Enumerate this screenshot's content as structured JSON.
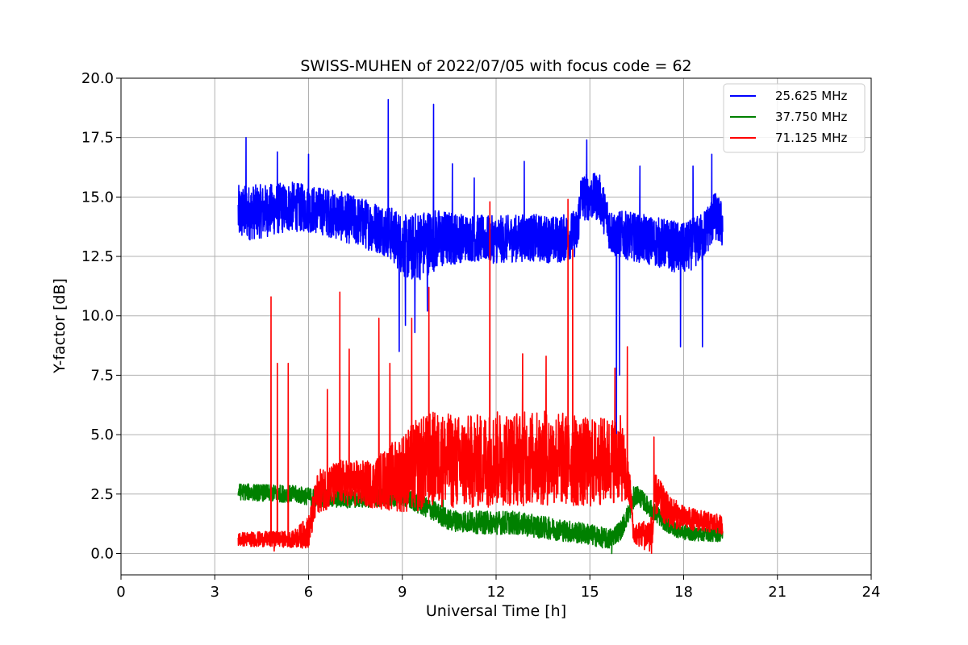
{
  "chart_data": {
    "type": "line",
    "title": "SWISS-MUHEN of 2022/07/05 with focus code = 62",
    "xlabel": "Universal Time [h]",
    "ylabel": "Y-factor [dB]",
    "xlim": [
      0,
      24
    ],
    "ylim": [
      -0.9,
      20.0
    ],
    "x_ticks": [
      0,
      3,
      6,
      9,
      12,
      15,
      18,
      21,
      24
    ],
    "x_tick_labels": [
      "0",
      "3",
      "6",
      "9",
      "12",
      "15",
      "18",
      "21",
      "24"
    ],
    "y_ticks": [
      0.0,
      2.5,
      5.0,
      7.5,
      10.0,
      12.5,
      15.0,
      17.5,
      20.0
    ],
    "y_tick_labels": [
      "0.0",
      "2.5",
      "5.0",
      "7.5",
      "10.0",
      "12.5",
      "15.0",
      "17.5",
      "20.0"
    ],
    "grid": true,
    "legend_position": "top-right",
    "series": [
      {
        "name": "25.625 MHz",
        "color": "#0000ff",
        "x_range": [
          3.75,
          19.25
        ],
        "baseline": [
          [
            3.75,
            14.3
          ],
          [
            4.5,
            14.4
          ],
          [
            5.5,
            14.6
          ],
          [
            6.5,
            14.4
          ],
          [
            7.5,
            14.0
          ],
          [
            8.5,
            13.6
          ],
          [
            9.2,
            12.8
          ],
          [
            10.0,
            13.2
          ],
          [
            11.0,
            13.3
          ],
          [
            12.0,
            13.2
          ],
          [
            13.0,
            13.3
          ],
          [
            14.0,
            13.2
          ],
          [
            14.6,
            13.5
          ],
          [
            14.7,
            15.0
          ],
          [
            15.3,
            15.0
          ],
          [
            15.7,
            13.5
          ],
          [
            16.5,
            13.3
          ],
          [
            17.5,
            13.0
          ],
          [
            18.0,
            12.8
          ],
          [
            18.6,
            13.3
          ],
          [
            19.0,
            14.2
          ],
          [
            19.25,
            13.8
          ]
        ],
        "noise": [
          [
            3.75,
            1.2
          ],
          [
            6.0,
            1.0
          ],
          [
            8.5,
            1.1
          ],
          [
            9.5,
            1.5
          ],
          [
            11.0,
            1.0
          ],
          [
            14.0,
            1.0
          ],
          [
            15.0,
            1.0
          ],
          [
            16.0,
            1.0
          ],
          [
            18.0,
            1.1
          ],
          [
            19.25,
            1.0
          ]
        ],
        "spikes": [
          [
            4.0,
            17.5
          ],
          [
            5.0,
            16.9
          ],
          [
            6.0,
            16.8
          ],
          [
            8.55,
            19.1
          ],
          [
            10.0,
            18.9
          ],
          [
            10.6,
            16.4
          ],
          [
            11.3,
            15.8
          ],
          [
            12.9,
            16.5
          ],
          [
            14.9,
            17.4
          ],
          [
            16.6,
            16.3
          ],
          [
            18.3,
            16.3
          ],
          [
            18.9,
            16.8
          ],
          [
            8.9,
            8.5
          ],
          [
            9.1,
            9.6
          ],
          [
            9.4,
            9.3
          ],
          [
            15.85,
            4.9
          ],
          [
            15.95,
            7.5
          ],
          [
            17.9,
            8.7
          ],
          [
            18.6,
            8.7
          ],
          [
            9.8,
            10.2
          ]
        ]
      },
      {
        "name": "37.750 MHz",
        "color": "#008000",
        "x_range": [
          3.75,
          19.25
        ],
        "baseline": [
          [
            3.75,
            2.6
          ],
          [
            5.5,
            2.5
          ],
          [
            6.5,
            2.3
          ],
          [
            7.5,
            2.3
          ],
          [
            9.0,
            2.4
          ],
          [
            10.0,
            1.8
          ],
          [
            10.5,
            1.4
          ],
          [
            11.5,
            1.3
          ],
          [
            12.5,
            1.3
          ],
          [
            13.5,
            1.1
          ],
          [
            14.0,
            1.0
          ],
          [
            15.0,
            0.8
          ],
          [
            15.6,
            0.6
          ],
          [
            16.0,
            1.0
          ],
          [
            16.5,
            2.5
          ],
          [
            17.0,
            1.8
          ],
          [
            17.5,
            1.2
          ],
          [
            18.0,
            0.9
          ],
          [
            19.0,
            0.8
          ],
          [
            19.25,
            0.8
          ]
        ],
        "noise": [
          [
            3.75,
            0.35
          ],
          [
            9.0,
            0.4
          ],
          [
            12.0,
            0.5
          ],
          [
            15.0,
            0.45
          ],
          [
            16.5,
            0.4
          ],
          [
            19.25,
            0.3
          ]
        ],
        "spikes": [
          [
            10.3,
            2.9
          ],
          [
            16.4,
            2.8
          ],
          [
            6.3,
            2.9
          ],
          [
            15.7,
            0.0
          ]
        ]
      },
      {
        "name": "71.125 MHz",
        "color": "#ff0000",
        "x_range": [
          3.75,
          19.25
        ],
        "baseline": [
          [
            3.75,
            0.6
          ],
          [
            5.5,
            0.6
          ],
          [
            6.0,
            0.9
          ],
          [
            6.3,
            2.6
          ],
          [
            7.0,
            3.0
          ],
          [
            8.0,
            2.9
          ],
          [
            9.0,
            3.4
          ],
          [
            10.0,
            4.0
          ],
          [
            11.0,
            3.8
          ],
          [
            12.0,
            4.0
          ],
          [
            13.0,
            4.0
          ],
          [
            14.0,
            4.0
          ],
          [
            15.0,
            3.8
          ],
          [
            16.0,
            4.0
          ],
          [
            16.3,
            2.5
          ],
          [
            16.4,
            0.8
          ],
          [
            17.0,
            0.8
          ],
          [
            17.1,
            2.5
          ],
          [
            17.5,
            1.8
          ],
          [
            18.0,
            1.5
          ],
          [
            19.25,
            1.2
          ]
        ],
        "noise": [
          [
            3.75,
            0.3
          ],
          [
            5.5,
            0.35
          ],
          [
            6.3,
            0.9
          ],
          [
            8.0,
            1.0
          ],
          [
            9.5,
            2.0
          ],
          [
            11.5,
            2.0
          ],
          [
            14.0,
            2.0
          ],
          [
            16.0,
            1.8
          ],
          [
            16.4,
            0.4
          ],
          [
            17.1,
            0.9
          ],
          [
            18.0,
            0.5
          ],
          [
            19.25,
            0.4
          ]
        ],
        "spikes": [
          [
            4.8,
            10.8
          ],
          [
            5.0,
            8.0
          ],
          [
            5.35,
            8.0
          ],
          [
            6.6,
            6.9
          ],
          [
            7.0,
            11.0
          ],
          [
            7.3,
            8.6
          ],
          [
            8.25,
            9.9
          ],
          [
            8.6,
            8.0
          ],
          [
            9.3,
            9.9
          ],
          [
            9.85,
            11.2
          ],
          [
            11.8,
            14.8
          ],
          [
            12.85,
            8.4
          ],
          [
            13.6,
            8.3
          ],
          [
            14.3,
            14.9
          ],
          [
            14.45,
            12.8
          ],
          [
            15.8,
            7.8
          ],
          [
            16.2,
            8.7
          ],
          [
            17.05,
            4.9
          ],
          [
            4.9,
            0.1
          ]
        ]
      }
    ]
  }
}
